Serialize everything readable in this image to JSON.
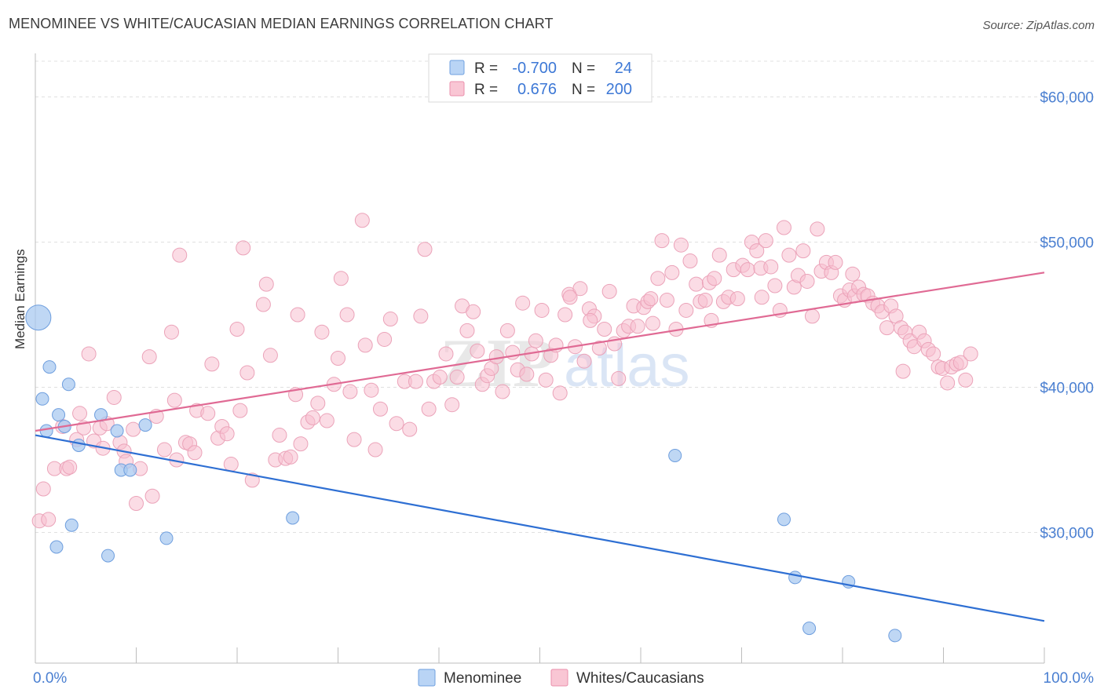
{
  "title": "MENOMINEE VS WHITE/CAUCASIAN MEDIAN EARNINGS CORRELATION CHART",
  "source": "Source: ZipAtlas.com",
  "watermark": {
    "zip": "ZIP",
    "atlas": "atlas"
  },
  "legend_top": [
    {
      "r_label": "R =",
      "r_value": "-0.700",
      "n_label": "N =",
      "n_value": "24",
      "fill": "#b9d4f5",
      "stroke": "#6fa0e0"
    },
    {
      "r_label": "R =",
      "r_value": "0.676",
      "n_label": "N =",
      "n_value": "200",
      "fill": "#f9c6d4",
      "stroke": "#ea8fab"
    }
  ],
  "legend_bottom": [
    {
      "label": "Menominee",
      "fill": "#b9d4f5",
      "stroke": "#6fa0e0"
    },
    {
      "label": "Whites/Caucasians",
      "fill": "#f9c6d4",
      "stroke": "#ea8fab"
    }
  ],
  "colors": {
    "menominee_point": "#a9c9f0",
    "menominee_line": "#2e6fd3",
    "whites_point": "#f7bfcf",
    "whites_line": "#e06a94",
    "tick_label": "#4a7fd1",
    "grid": "#e0e0e0"
  },
  "chart_data": {
    "type": "scatter",
    "title": "MENOMINEE VS WHITE/CAUCASIAN MEDIAN EARNINGS CORRELATION CHART",
    "xlabel": "",
    "ylabel": "Median Earnings",
    "x_tick_labels": [
      "0.0%",
      "100.0%"
    ],
    "y_tick_labels": [
      "$30,000",
      "$40,000",
      "$50,000",
      "$60,000"
    ],
    "y_ticks": [
      30000,
      40000,
      50000,
      60000
    ],
    "xlim": [
      0,
      100
    ],
    "ylim": [
      21000,
      63000
    ],
    "grid": true,
    "legend_position": "top-center",
    "series": [
      {
        "name": "Menominee",
        "points": [
          [
            0.3,
            44800
          ],
          [
            0.7,
            39200
          ],
          [
            1.4,
            41400
          ],
          [
            1.1,
            37000
          ],
          [
            2.3,
            38100
          ],
          [
            2.9,
            37300
          ],
          [
            3.3,
            40200
          ],
          [
            4.3,
            36000
          ],
          [
            6.5,
            38100
          ],
          [
            8.1,
            37000
          ],
          [
            8.5,
            34300
          ],
          [
            9.4,
            34300
          ],
          [
            10.9,
            37400
          ],
          [
            2.1,
            29000
          ],
          [
            3.6,
            30500
          ],
          [
            7.2,
            28400
          ],
          [
            13.0,
            29600
          ],
          [
            25.5,
            31000
          ],
          [
            63.4,
            35300
          ],
          [
            74.2,
            30900
          ],
          [
            75.3,
            26900
          ],
          [
            80.6,
            26600
          ],
          [
            76.7,
            23400
          ],
          [
            85.2,
            22900
          ]
        ],
        "trend": [
          [
            0,
            36700
          ],
          [
            100,
            23900
          ]
        ]
      },
      {
        "name": "Whites/Caucasians",
        "points": [
          [
            0.4,
            30800
          ],
          [
            0.8,
            33000
          ],
          [
            1.3,
            30900
          ],
          [
            1.9,
            34400
          ],
          [
            2.7,
            37300
          ],
          [
            3.1,
            34400
          ],
          [
            3.4,
            34500
          ],
          [
            4.1,
            36400
          ],
          [
            4.4,
            38200
          ],
          [
            4.8,
            37200
          ],
          [
            5.3,
            42300
          ],
          [
            5.8,
            36300
          ],
          [
            6.4,
            37200
          ],
          [
            6.7,
            35800
          ],
          [
            7.1,
            37500
          ],
          [
            7.8,
            39300
          ],
          [
            8.4,
            36200
          ],
          [
            8.8,
            35600
          ],
          [
            9.0,
            34900
          ],
          [
            9.7,
            37100
          ],
          [
            10.0,
            32000
          ],
          [
            10.4,
            34400
          ],
          [
            11.3,
            42100
          ],
          [
            11.6,
            32500
          ],
          [
            12.8,
            35700
          ],
          [
            13.5,
            43800
          ],
          [
            13.8,
            39100
          ],
          [
            14.3,
            49100
          ],
          [
            14.9,
            36200
          ],
          [
            15.3,
            36100
          ],
          [
            15.8,
            35500
          ],
          [
            16.0,
            38400
          ],
          [
            17.1,
            38200
          ],
          [
            17.5,
            41600
          ],
          [
            18.1,
            36500
          ],
          [
            18.5,
            37300
          ],
          [
            19.0,
            36800
          ],
          [
            19.4,
            34700
          ],
          [
            20.3,
            38400
          ],
          [
            20.6,
            49600
          ],
          [
            21.0,
            41000
          ],
          [
            21.5,
            33600
          ],
          [
            22.6,
            45700
          ],
          [
            22.9,
            47100
          ],
          [
            23.3,
            42200
          ],
          [
            23.8,
            35000
          ],
          [
            24.2,
            36700
          ],
          [
            24.8,
            35100
          ],
          [
            25.3,
            35200
          ],
          [
            25.8,
            39500
          ],
          [
            26.3,
            36100
          ],
          [
            27.0,
            37600
          ],
          [
            27.5,
            37900
          ],
          [
            28.0,
            38900
          ],
          [
            28.4,
            43800
          ],
          [
            28.9,
            37700
          ],
          [
            29.6,
            40200
          ],
          [
            30.3,
            47500
          ],
          [
            30.9,
            45000
          ],
          [
            31.2,
            39700
          ],
          [
            31.6,
            36400
          ],
          [
            32.4,
            51500
          ],
          [
            32.7,
            42900
          ],
          [
            33.3,
            39800
          ],
          [
            33.7,
            35700
          ],
          [
            34.2,
            38500
          ],
          [
            34.6,
            43300
          ],
          [
            35.2,
            44700
          ],
          [
            35.8,
            37500
          ],
          [
            36.6,
            40400
          ],
          [
            37.1,
            37100
          ],
          [
            37.7,
            40400
          ],
          [
            38.2,
            44900
          ],
          [
            38.6,
            49500
          ],
          [
            39.0,
            38500
          ],
          [
            39.5,
            40400
          ],
          [
            40.1,
            40700
          ],
          [
            40.7,
            42300
          ],
          [
            41.3,
            38800
          ],
          [
            41.8,
            40700
          ],
          [
            42.3,
            45600
          ],
          [
            42.8,
            43900
          ],
          [
            43.4,
            45200
          ],
          [
            43.8,
            42500
          ],
          [
            44.3,
            40200
          ],
          [
            44.8,
            40800
          ],
          [
            45.2,
            41300
          ],
          [
            45.7,
            42100
          ],
          [
            46.3,
            39700
          ],
          [
            46.8,
            43900
          ],
          [
            47.3,
            42400
          ],
          [
            47.8,
            41200
          ],
          [
            48.3,
            45800
          ],
          [
            48.7,
            40900
          ],
          [
            49.2,
            42300
          ],
          [
            49.6,
            43200
          ],
          [
            50.2,
            45300
          ],
          [
            50.6,
            40500
          ],
          [
            51.1,
            42200
          ],
          [
            51.6,
            42900
          ],
          [
            52.0,
            39600
          ],
          [
            52.5,
            45000
          ],
          [
            52.9,
            46400
          ],
          [
            53.5,
            42800
          ],
          [
            54.0,
            46800
          ],
          [
            54.4,
            41800
          ],
          [
            54.9,
            45400
          ],
          [
            55.4,
            44900
          ],
          [
            55.9,
            42700
          ],
          [
            56.4,
            44000
          ],
          [
            56.9,
            46600
          ],
          [
            57.4,
            43000
          ],
          [
            57.8,
            40600
          ],
          [
            58.3,
            43900
          ],
          [
            58.8,
            44200
          ],
          [
            59.3,
            45600
          ],
          [
            59.7,
            44200
          ],
          [
            60.3,
            45500
          ],
          [
            60.7,
            45900
          ],
          [
            61.2,
            44400
          ],
          [
            61.7,
            47500
          ],
          [
            62.1,
            50100
          ],
          [
            62.6,
            46000
          ],
          [
            63.1,
            47900
          ],
          [
            63.5,
            44000
          ],
          [
            64.0,
            49800
          ],
          [
            64.5,
            45300
          ],
          [
            64.9,
            48700
          ],
          [
            65.5,
            47100
          ],
          [
            65.9,
            45900
          ],
          [
            66.4,
            46000
          ],
          [
            66.8,
            47200
          ],
          [
            67.3,
            47500
          ],
          [
            67.8,
            49100
          ],
          [
            68.2,
            45900
          ],
          [
            68.7,
            46200
          ],
          [
            69.2,
            48100
          ],
          [
            69.6,
            46100
          ],
          [
            70.1,
            48400
          ],
          [
            70.6,
            48100
          ],
          [
            71.0,
            50000
          ],
          [
            71.5,
            49400
          ],
          [
            71.9,
            48200
          ],
          [
            72.4,
            50100
          ],
          [
            72.9,
            48300
          ],
          [
            73.3,
            47000
          ],
          [
            73.8,
            45300
          ],
          [
            74.2,
            51000
          ],
          [
            74.7,
            49100
          ],
          [
            75.2,
            46900
          ],
          [
            75.6,
            47700
          ],
          [
            76.1,
            49400
          ],
          [
            76.5,
            47300
          ],
          [
            77.0,
            44900
          ],
          [
            77.5,
            50900
          ],
          [
            77.9,
            48000
          ],
          [
            78.4,
            48600
          ],
          [
            78.9,
            47900
          ],
          [
            79.3,
            48600
          ],
          [
            79.8,
            46300
          ],
          [
            80.2,
            46000
          ],
          [
            80.7,
            46700
          ],
          [
            81.2,
            46300
          ],
          [
            81.6,
            46900
          ],
          [
            82.1,
            46400
          ],
          [
            82.5,
            46300
          ],
          [
            83.0,
            45800
          ],
          [
            83.5,
            45600
          ],
          [
            83.9,
            45200
          ],
          [
            84.4,
            44100
          ],
          [
            84.8,
            45600
          ],
          [
            85.3,
            44900
          ],
          [
            85.8,
            44100
          ],
          [
            86.2,
            43800
          ],
          [
            86.7,
            43200
          ],
          [
            87.1,
            42800
          ],
          [
            87.6,
            43800
          ],
          [
            88.1,
            43200
          ],
          [
            88.5,
            42600
          ],
          [
            89.0,
            42300
          ],
          [
            89.5,
            41400
          ],
          [
            89.9,
            41300
          ],
          [
            90.4,
            40300
          ],
          [
            90.8,
            41400
          ],
          [
            91.3,
            41600
          ],
          [
            91.7,
            41700
          ],
          [
            92.2,
            40500
          ],
          [
            92.7,
            42300
          ],
          [
            53.0,
            46200
          ],
          [
            55.0,
            44600
          ],
          [
            61.0,
            46100
          ],
          [
            67.0,
            44600
          ],
          [
            72.0,
            46200
          ],
          [
            81.0,
            47800
          ],
          [
            86.0,
            41100
          ],
          [
            30.0,
            42000
          ],
          [
            26.0,
            45000
          ],
          [
            20.0,
            44000
          ],
          [
            14.0,
            35000
          ],
          [
            12.0,
            38000
          ]
        ],
        "trend": [
          [
            0,
            37000
          ],
          [
            100,
            47900
          ]
        ]
      }
    ]
  }
}
